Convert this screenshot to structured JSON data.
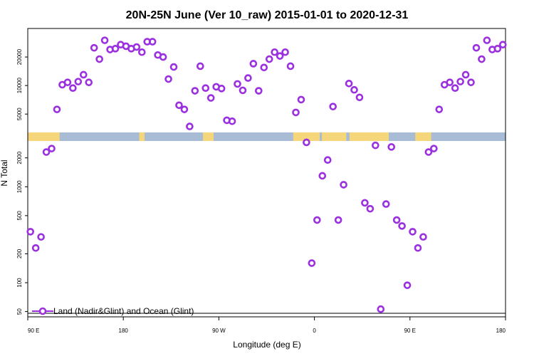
{
  "chart_data": {
    "type": "scatter",
    "title": "20N-25N June (Ver 10_raw)   2015-01-01 to 2020-12-31",
    "xlabel": "Longitude (deg E)",
    "ylabel": "N Total",
    "x_ticks": [
      {
        "value": 90,
        "label": "90 E"
      },
      {
        "value": 180,
        "label": "180"
      },
      {
        "value": 270,
        "label": "90 W"
      },
      {
        "value": 360,
        "label": "0"
      },
      {
        "value": 450,
        "label": "90 E"
      },
      {
        "value": 540,
        "label": "180"
      }
    ],
    "xlim": [
      90,
      540
    ],
    "yscale": "log",
    "upper_panel": {
      "ylim": [
        3200,
        40000
      ],
      "y_ticks": [
        {
          "value": 5000,
          "label": "5000"
        },
        {
          "value": 10000,
          "label": "10000"
        },
        {
          "value": 20000,
          "label": "20000"
        }
      ]
    },
    "lower_panel": {
      "ylim": [
        48,
        3000
      ],
      "y_ticks": [
        {
          "value": 50,
          "label": "50"
        },
        {
          "value": 100,
          "label": "100"
        },
        {
          "value": 200,
          "label": "200"
        },
        {
          "value": 500,
          "label": "500"
        },
        {
          "value": 1000,
          "label": "1000"
        },
        {
          "value": 2000,
          "label": "2000"
        }
      ]
    },
    "series": [
      {
        "name": "Land (Nadir&Glint) and Ocean (Glint)",
        "color": "#9b30e0",
        "marker": "open-circle",
        "points": [
          [
            92.5,
            340
          ],
          [
            97.5,
            230
          ],
          [
            102.5,
            300
          ],
          [
            107.5,
            2300
          ],
          [
            112.5,
            2500
          ],
          [
            117.5,
            5600
          ],
          [
            122.5,
            10200
          ],
          [
            127.5,
            10800
          ],
          [
            132.5,
            9400
          ],
          [
            137.5,
            11000
          ],
          [
            142.5,
            13000
          ],
          [
            147.5,
            10800
          ],
          [
            152.5,
            25000
          ],
          [
            157.5,
            19000
          ],
          [
            162.5,
            30000
          ],
          [
            167.5,
            24000
          ],
          [
            172.5,
            24500
          ],
          [
            177.5,
            27000
          ],
          [
            182.5,
            26000
          ],
          [
            187.5,
            24500
          ],
          [
            192.5,
            25500
          ],
          [
            197.5,
            22500
          ],
          [
            202.5,
            29000
          ],
          [
            207.5,
            29000
          ],
          [
            212.5,
            21000
          ],
          [
            217.5,
            20000
          ],
          [
            222.5,
            11700
          ],
          [
            227.5,
            15700
          ],
          [
            232.5,
            6200
          ],
          [
            237.5,
            5600
          ],
          [
            242.5,
            3700
          ],
          [
            247.5,
            8800
          ],
          [
            252.5,
            16000
          ],
          [
            257.5,
            9400
          ],
          [
            262.5,
            7400
          ],
          [
            267.5,
            9700
          ],
          [
            272.5,
            9300
          ],
          [
            277.5,
            4300
          ],
          [
            282.5,
            4200
          ],
          [
            287.5,
            10400
          ],
          [
            292.5,
            8900
          ],
          [
            297.5,
            12000
          ],
          [
            302.5,
            17000
          ],
          [
            307.5,
            8800
          ],
          [
            312.5,
            15500
          ],
          [
            317.5,
            19000
          ],
          [
            322.5,
            22500
          ],
          [
            327.5,
            20500
          ],
          [
            332.5,
            22500
          ],
          [
            337.5,
            16000
          ],
          [
            342.5,
            5200
          ],
          [
            347.5,
            7100
          ],
          [
            352.5,
            2900
          ],
          [
            357.5,
            160
          ],
          [
            362.5,
            450
          ],
          [
            367.5,
            1300
          ],
          [
            372.5,
            1900
          ],
          [
            377.5,
            6000
          ],
          [
            382.5,
            450
          ],
          [
            387.5,
            1050
          ],
          [
            392.5,
            10500
          ],
          [
            397.5,
            9000
          ],
          [
            402.5,
            7500
          ],
          [
            407.5,
            680
          ],
          [
            412.5,
            590
          ],
          [
            417.5,
            2700
          ],
          [
            422.5,
            53
          ],
          [
            427.5,
            660
          ],
          [
            432.5,
            2600
          ],
          [
            437.5,
            450
          ],
          [
            442.5,
            390
          ],
          [
            447.5,
            94
          ],
          [
            452.5,
            340
          ],
          [
            457.5,
            230
          ],
          [
            462.5,
            300
          ],
          [
            467.5,
            2300
          ],
          [
            472.5,
            2500
          ],
          [
            477.5,
            5600
          ],
          [
            482.5,
            10200
          ],
          [
            487.5,
            10800
          ],
          [
            492.5,
            9400
          ],
          [
            497.5,
            11000
          ],
          [
            502.5,
            13000
          ],
          [
            507.5,
            10800
          ],
          [
            512.5,
            25000
          ],
          [
            517.5,
            19000
          ],
          [
            522.5,
            30000
          ],
          [
            527.5,
            24000
          ],
          [
            532.5,
            24500
          ],
          [
            537.5,
            27000
          ]
        ]
      }
    ],
    "legend_position": "bottom-left",
    "map_band": {
      "ocean_color": "#a8bcd6",
      "land_color": "#f5d67a",
      "land_ranges": [
        [
          90,
          120
        ],
        [
          195,
          200
        ],
        [
          255,
          265
        ],
        [
          340,
          365
        ],
        [
          367,
          390
        ],
        [
          393,
          430
        ],
        [
          455,
          470
        ]
      ]
    }
  }
}
